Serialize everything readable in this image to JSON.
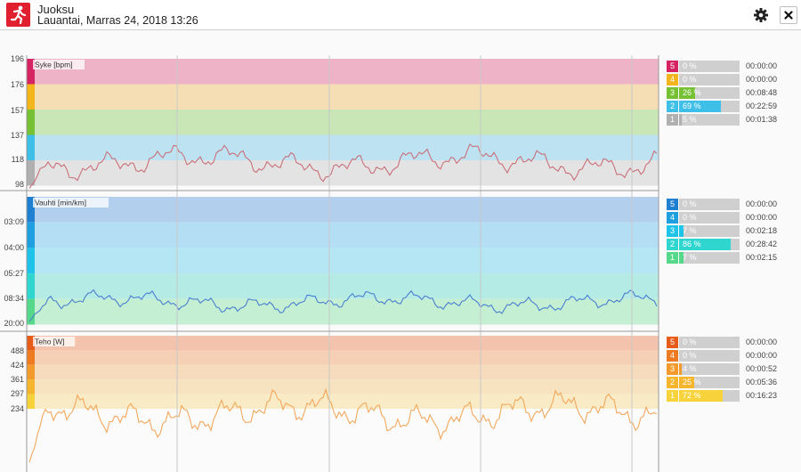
{
  "header": {
    "title": "Juoksu",
    "subtitle": "Lauantai, Marras 24, 2018 13:26"
  },
  "panels": [
    {
      "id": "hr",
      "label": "Syke [bpm]",
      "ticks": [
        "196",
        "176",
        "157",
        "137",
        "118",
        "98"
      ],
      "line_color": "#c9707a",
      "zones": [
        {
          "num": "5",
          "color": "#d62462",
          "band": "#eeb3c6",
          "fill": "#d62462",
          "pct_label": "0 %",
          "pct": 0,
          "duration": "00:00:00"
        },
        {
          "num": "4",
          "color": "#f2b51c",
          "band": "#f5deb4",
          "fill": "#f2b51c",
          "pct_label": "0 %",
          "pct": 0,
          "duration": "00:00:00"
        },
        {
          "num": "3",
          "color": "#76c033",
          "band": "#c9e6b6",
          "fill": "#76c033",
          "pct_label": "26 %",
          "pct": 26,
          "duration": "00:08:48"
        },
        {
          "num": "2",
          "color": "#3ebfe8",
          "band": "#bde3f2",
          "fill": "#3ebfe8",
          "pct_label": "69 %",
          "pct": 69,
          "duration": "00:22:59"
        },
        {
          "num": "1",
          "color": "#b0b0b0",
          "band": "#e3e3e3",
          "fill": "#b0b0b0",
          "pct_label": "5 %",
          "pct": 5,
          "duration": "00:01:38"
        }
      ]
    },
    {
      "id": "pace",
      "label": "Vauhti [min/km]",
      "ticks": [
        "03:09",
        "04:00",
        "05:27",
        "08:34",
        "20:00"
      ],
      "line_color": "#4a7fd0",
      "zones": [
        {
          "num": "5",
          "color": "#1f7fd0",
          "band": "#b2d0ee",
          "fill": "#1f7fd0",
          "pct_label": "0 %",
          "pct": 0,
          "duration": "00:00:00"
        },
        {
          "num": "4",
          "color": "#1e9fe0",
          "band": "#b4def3",
          "fill": "#1e9fe0",
          "pct_label": "0 %",
          "pct": 0,
          "duration": "00:00:00"
        },
        {
          "num": "3",
          "color": "#1ec3ea",
          "band": "#b4e7f3",
          "fill": "#1ec3ea",
          "pct_label": "7 %",
          "pct": 7,
          "duration": "00:02:18"
        },
        {
          "num": "2",
          "color": "#2fd5cf",
          "band": "#b5ebe5",
          "fill": "#2fd5cf",
          "pct_label": "86 %",
          "pct": 86,
          "duration": "00:28:42"
        },
        {
          "num": "1",
          "color": "#55d88a",
          "band": "#c4efd3",
          "fill": "#55d88a",
          "pct_label": "7 %",
          "pct": 7,
          "duration": "00:02:15"
        }
      ]
    },
    {
      "id": "power",
      "label": "Teho [W]",
      "ticks": [
        "488",
        "424",
        "361",
        "297",
        "234"
      ],
      "line_color": "#f2a85c",
      "zones": [
        {
          "num": "5",
          "color": "#e65c18",
          "band": "#f3c3ae",
          "fill": "#e65c18",
          "pct_label": "0 %",
          "pct": 0,
          "duration": "00:00:00"
        },
        {
          "num": "4",
          "color": "#ee7b22",
          "band": "#f5d0b5",
          "fill": "#ee7b22",
          "pct_label": "0 %",
          "pct": 0,
          "duration": "00:00:00"
        },
        {
          "num": "3",
          "color": "#f29a2b",
          "band": "#f6dbbd",
          "fill": "#f29a2b",
          "pct_label": "4 %",
          "pct": 4,
          "duration": "00:00:52"
        },
        {
          "num": "2",
          "color": "#f5b52c",
          "band": "#f7e3c0",
          "fill": "#f5b52c",
          "pct_label": "25 %",
          "pct": 25,
          "duration": "00:05:36"
        },
        {
          "num": "1",
          "color": "#f8d23a",
          "band": "#f8ebc5",
          "fill": "#f8d23a",
          "pct_label": "72 %",
          "pct": 72,
          "duration": "00:16:23"
        }
      ]
    }
  ]
}
